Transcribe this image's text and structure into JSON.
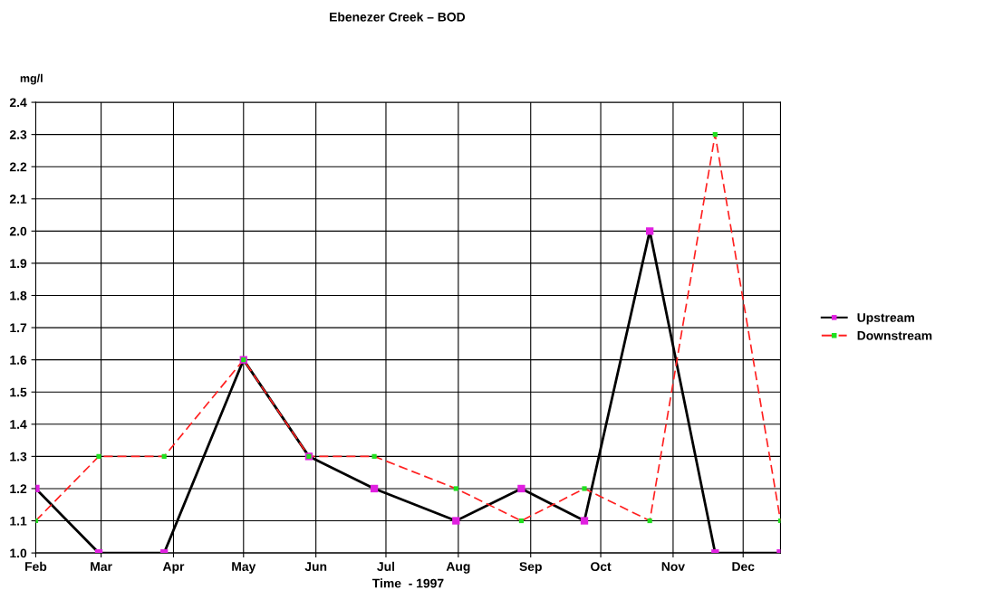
{
  "chart_data": {
    "type": "line",
    "title": "Ebenezer Creek – BOD",
    "xlabel": "Time  - 1997",
    "ylabel": "mg/l",
    "x": [
      "1997-02-01",
      "1997-02-28",
      "1997-03-28",
      "1997-05-01",
      "1997-05-29",
      "1997-06-26",
      "1997-07-31",
      "1997-08-28",
      "1997-09-24",
      "1997-10-22",
      "1997-11-19",
      "1997-12-17"
    ],
    "series": [
      {
        "name": "Upstream",
        "color": "#000000",
        "line_style": "solid",
        "colors": [
          "#e020e0",
          "#e020e0",
          "#e020e0",
          "#e020e0",
          "#e020e0",
          "#e020e0",
          "#e020e0",
          "#e020e0",
          "#e020e0",
          "#e020e0",
          "#e020e0",
          "#e020e0"
        ],
        "values": [
          1.2,
          1.0,
          1.0,
          1.6,
          1.3,
          1.2,
          1.1,
          1.2,
          1.1,
          2.0,
          1.0,
          1.0
        ]
      },
      {
        "name": "Downstream",
        "color": "#ff2020",
        "line_style": "dashed",
        "colors": [
          "#20e020",
          "#20e020",
          "#20e020",
          "#20e020",
          "#20e020",
          "#20e020",
          "#20e020",
          "#20e020",
          "#20e020",
          "#20e020",
          "#20e020",
          "#20e020"
        ],
        "values": [
          1.1,
          1.3,
          1.3,
          1.6,
          1.3,
          1.3,
          1.2,
          1.1,
          1.2,
          1.1,
          2.3,
          1.1
        ]
      }
    ],
    "xlim": [
      "1997-02-01",
      "1997-12-17"
    ],
    "xticks": [
      {
        "value": "1997-02-01",
        "label": "Feb"
      },
      {
        "value": "1997-03-01",
        "label": "Mar"
      },
      {
        "value": "1997-04-01",
        "label": "Apr"
      },
      {
        "value": "1997-05-01",
        "label": "May"
      },
      {
        "value": "1997-06-01",
        "label": "Jun"
      },
      {
        "value": "1997-07-01",
        "label": "Jul"
      },
      {
        "value": "1997-08-01",
        "label": "Aug"
      },
      {
        "value": "1997-09-01",
        "label": "Sep"
      },
      {
        "value": "1997-10-01",
        "label": "Oct"
      },
      {
        "value": "1997-11-01",
        "label": "Nov"
      },
      {
        "value": "1997-12-01",
        "label": "Dec"
      }
    ],
    "ylim": [
      1.0,
      2.4
    ],
    "yticks": [
      {
        "value": 1,
        "label": "1.0"
      },
      1.1,
      1.2,
      1.3,
      1.4,
      1.5,
      1.6,
      1.7,
      1.8,
      1.9,
      {
        "value": 2,
        "label": "2.0"
      },
      2.1,
      2.2,
      2.3,
      2.4
    ],
    "grid": true,
    "legend": "right",
    "marker": "square"
  }
}
